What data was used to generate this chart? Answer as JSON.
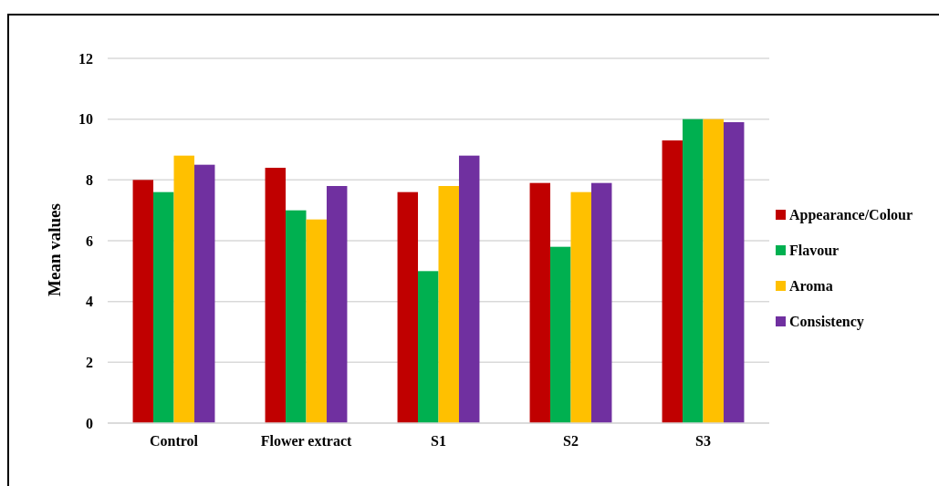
{
  "chart_data": {
    "type": "bar",
    "ylabel": "Mean values",
    "categories": [
      "Control",
      "Flower extract",
      "S1",
      "S2",
      "S3"
    ],
    "series": [
      {
        "name": "Appearance/Colour",
        "color": "#c00000",
        "values": [
          8.0,
          8.4,
          7.6,
          7.9,
          9.3
        ]
      },
      {
        "name": "Flavour",
        "color": "#00b050",
        "values": [
          7.6,
          7.0,
          5.0,
          5.8,
          10.0
        ]
      },
      {
        "name": "Aroma",
        "color": "#ffc000",
        "values": [
          8.8,
          6.7,
          7.8,
          7.6,
          10.0
        ]
      },
      {
        "name": "Consistency",
        "color": "#7030a0",
        "values": [
          8.5,
          7.8,
          8.8,
          7.9,
          9.9
        ]
      }
    ],
    "ylim": [
      0,
      12
    ],
    "yticks": [
      0,
      2,
      4,
      6,
      8,
      10,
      12
    ],
    "grid": "y",
    "legend": "right"
  }
}
